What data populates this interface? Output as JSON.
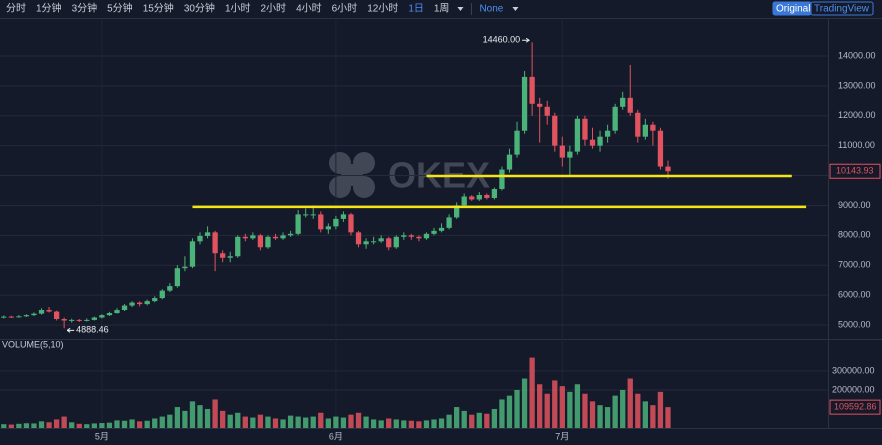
{
  "toolbar": {
    "intervals": [
      "分时",
      "1分钟",
      "3分钟",
      "5分钟",
      "15分钟",
      "30分钟",
      "1小时",
      "2小时",
      "4小时",
      "6小时",
      "12小时",
      "1日",
      "1周"
    ],
    "indicator": "None",
    "views": [
      "Original",
      "TradingView"
    ]
  },
  "chart_data": {
    "type": "candlestick",
    "watermark": "OKEX",
    "volume_title": "VOLUME(5,10)",
    "x": [
      0,
      1,
      2,
      3,
      4,
      5,
      6,
      7,
      8,
      9,
      10,
      11,
      12,
      13,
      14,
      15,
      16,
      17,
      18,
      19,
      20,
      21,
      22,
      23,
      24,
      25,
      26,
      27,
      28,
      29,
      30,
      31,
      32,
      33,
      34,
      35,
      36,
      37,
      38,
      39,
      40,
      41,
      42,
      43,
      44,
      45,
      46,
      47,
      48,
      49,
      50,
      51,
      52,
      53,
      54,
      55,
      56,
      57,
      58,
      59,
      60,
      61,
      62,
      63,
      64,
      65,
      66,
      67,
      68,
      69,
      70,
      71,
      72,
      73,
      74,
      75,
      76,
      77,
      78,
      79,
      80,
      81,
      82,
      83,
      84,
      85,
      86,
      87,
      88
    ],
    "xlim": [
      -0.5,
      109.2
    ],
    "xticks": [
      {
        "value": 13,
        "label": "5月"
      },
      {
        "value": 44,
        "label": "6月"
      },
      {
        "value": 74,
        "label": "7月"
      }
    ],
    "ohlc": [
      [
        5250,
        5320,
        5220,
        5280
      ],
      [
        5280,
        5310,
        5240,
        5270
      ],
      [
        5270,
        5330,
        5250,
        5290
      ],
      [
        5290,
        5360,
        5270,
        5330
      ],
      [
        5330,
        5420,
        5300,
        5380
      ],
      [
        5380,
        5560,
        5350,
        5500
      ],
      [
        5500,
        5600,
        5420,
        5450
      ],
      [
        5450,
        5480,
        5150,
        5200
      ],
      [
        5200,
        5250,
        4888.46,
        5150
      ],
      [
        5150,
        5210,
        5080,
        5170
      ],
      [
        5170,
        5200,
        5100,
        5150
      ],
      [
        5150,
        5220,
        5120,
        5170
      ],
      [
        5170,
        5280,
        5150,
        5250
      ],
      [
        5250,
        5360,
        5220,
        5330
      ],
      [
        5330,
        5440,
        5300,
        5400
      ],
      [
        5400,
        5560,
        5380,
        5500
      ],
      [
        5500,
        5700,
        5470,
        5650
      ],
      [
        5650,
        5800,
        5600,
        5750
      ],
      [
        5750,
        5790,
        5620,
        5700
      ],
      [
        5700,
        5850,
        5660,
        5800
      ],
      [
        5800,
        5960,
        5760,
        5900
      ],
      [
        5900,
        6200,
        5860,
        6150
      ],
      [
        6150,
        6400,
        6100,
        6300
      ],
      [
        6300,
        7000,
        6250,
        6900
      ],
      [
        6900,
        7300,
        6800,
        6950
      ],
      [
        6950,
        7900,
        6900,
        7800
      ],
      [
        7800,
        8100,
        7700,
        7980
      ],
      [
        7980,
        8300,
        7900,
        8100
      ],
      [
        8100,
        8150,
        6800,
        7400
      ],
      [
        7400,
        7500,
        7100,
        7250
      ],
      [
        7250,
        7450,
        7100,
        7300
      ],
      [
        7300,
        8000,
        7250,
        7950
      ],
      [
        7950,
        8050,
        7800,
        7900
      ],
      [
        7900,
        8100,
        7850,
        8000
      ],
      [
        8000,
        8050,
        7500,
        7600
      ],
      [
        7600,
        8000,
        7550,
        7950
      ],
      [
        7950,
        8050,
        7850,
        7900
      ],
      [
        7900,
        8100,
        7850,
        8000
      ],
      [
        8000,
        8150,
        7950,
        8050
      ],
      [
        8050,
        8850,
        8000,
        8700
      ],
      [
        8700,
        8900,
        8600,
        8700
      ],
      [
        8700,
        9000,
        8550,
        8700
      ],
      [
        8700,
        8800,
        8100,
        8200
      ],
      [
        8200,
        8400,
        8050,
        8300
      ],
      [
        8300,
        8650,
        8200,
        8550
      ],
      [
        8550,
        8800,
        8450,
        8700
      ],
      [
        8700,
        8750,
        8000,
        8100
      ],
      [
        8100,
        8150,
        7600,
        7700
      ],
      [
        7700,
        7900,
        7550,
        7800
      ],
      [
        7800,
        7950,
        7700,
        7800
      ],
      [
        7800,
        8000,
        7750,
        7900
      ],
      [
        7900,
        7950,
        7500,
        7600
      ],
      [
        7600,
        8000,
        7550,
        7950
      ],
      [
        7950,
        8100,
        7850,
        8000
      ],
      [
        8000,
        8050,
        7850,
        7950
      ],
      [
        7950,
        8000,
        7800,
        7900
      ],
      [
        7900,
        8100,
        7850,
        8050
      ],
      [
        8050,
        8250,
        8000,
        8150
      ],
      [
        8150,
        8400,
        8100,
        8250
      ],
      [
        8250,
        8700,
        8200,
        8600
      ],
      [
        8600,
        9100,
        8550,
        9000
      ],
      [
        9000,
        9400,
        8950,
        9300
      ],
      [
        9300,
        9350,
        9150,
        9200
      ],
      [
        9200,
        9450,
        9150,
        9350
      ],
      [
        9350,
        9400,
        9200,
        9250
      ],
      [
        9250,
        9600,
        9200,
        9550
      ],
      [
        9550,
        10300,
        9500,
        10200
      ],
      [
        10200,
        10900,
        10100,
        10700
      ],
      [
        10700,
        11800,
        10600,
        11500
      ],
      [
        11500,
        13500,
        11400,
        13300
      ],
      [
        13300,
        14460,
        12000,
        12400
      ],
      [
        12400,
        12600,
        11100,
        12300
      ],
      [
        12300,
        12500,
        11700,
        12000
      ],
      [
        12000,
        12100,
        10800,
        11000
      ],
      [
        11000,
        11300,
        10300,
        10600
      ],
      [
        10600,
        11000,
        10000,
        10800
      ],
      [
        10800,
        12000,
        10700,
        11900
      ],
      [
        11900,
        12000,
        11000,
        11200
      ],
      [
        11200,
        11600,
        10900,
        11000
      ],
      [
        11000,
        11500,
        10800,
        11300
      ],
      [
        11300,
        11700,
        11100,
        11500
      ],
      [
        11500,
        12400,
        11400,
        12300
      ],
      [
        12300,
        12800,
        12200,
        12600
      ],
      [
        12600,
        13700,
        12000,
        12100
      ],
      [
        12100,
        12200,
        11100,
        11300
      ],
      [
        11300,
        11900,
        11200,
        11700
      ],
      [
        11700,
        11800,
        11000,
        11500
      ],
      [
        11500,
        11600,
        10200,
        10300
      ],
      [
        10300,
        10500,
        9900,
        10143.93
      ]
    ],
    "volume": [
      20000,
      18000,
      22000,
      25000,
      24000,
      35000,
      30000,
      45000,
      60000,
      30000,
      22000,
      20000,
      24000,
      26000,
      28000,
      40000,
      38000,
      45000,
      35000,
      38000,
      50000,
      60000,
      70000,
      110000,
      90000,
      140000,
      120000,
      100000,
      150000,
      90000,
      70000,
      80000,
      60000,
      55000,
      70000,
      60000,
      50000,
      45000,
      65000,
      60000,
      55000,
      60000,
      80000,
      50000,
      60000,
      55000,
      70000,
      80000,
      60000,
      45000,
      40000,
      50000,
      45000,
      40000,
      38000,
      35000,
      40000,
      45000,
      50000,
      70000,
      110000,
      90000,
      70000,
      80000,
      75000,
      100000,
      150000,
      170000,
      200000,
      260000,
      370000,
      230000,
      180000,
      250000,
      220000,
      190000,
      230000,
      180000,
      140000,
      120000,
      110000,
      170000,
      200000,
      260000,
      180000,
      140000,
      120000,
      190000,
      109592.86
    ],
    "up_color": "#4bb27a",
    "down_color": "#e0535f",
    "ylim": [
      4565,
      15204
    ],
    "yticks": [
      {
        "value": 5000,
        "label": "5000.00"
      },
      {
        "value": 6000,
        "label": "6000.00"
      },
      {
        "value": 7000,
        "label": "7000.00"
      },
      {
        "value": 8000,
        "label": "8000.00"
      },
      {
        "value": 9000,
        "label": "9000.00"
      },
      {
        "value": 10000,
        "label": "10000.00"
      },
      {
        "value": 11000,
        "label": "11000.00"
      },
      {
        "value": 12000,
        "label": "12000.00"
      },
      {
        "value": 13000,
        "label": "13000.00"
      },
      {
        "value": 14000,
        "label": "14000.00"
      }
    ],
    "y2lim": [
      0,
      452000
    ],
    "y2ticks": [
      {
        "value": 200000,
        "label": "200000.00"
      },
      {
        "value": 300000,
        "label": "300000.00"
      }
    ],
    "last_price": {
      "value": 10143.93,
      "label": "10143.93"
    },
    "last_volume": {
      "value": 109592.86,
      "label": "109592.86"
    },
    "high_note": {
      "x": 70,
      "value": 14460,
      "label": "14460.00"
    },
    "low_note": {
      "x": 8,
      "value": 4888.46,
      "label": "4888.46"
    },
    "hlines": [
      {
        "y": 8950,
        "x": [
          25,
          106.3
        ]
      },
      {
        "y": 9985,
        "x": [
          56,
          104.4
        ]
      }
    ],
    "hline_color": "#f5e416",
    "grid": true
  }
}
